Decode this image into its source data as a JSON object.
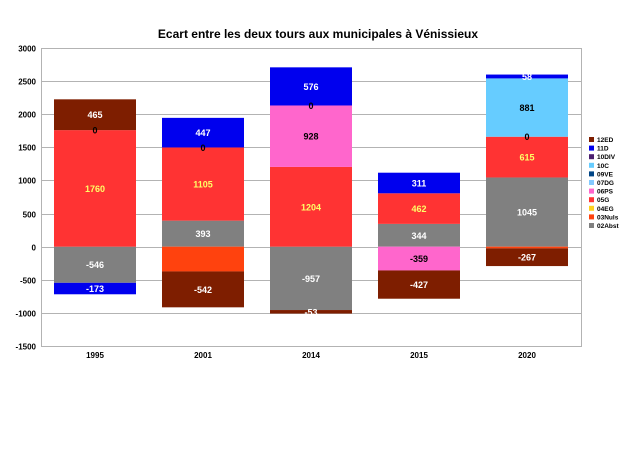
{
  "chart_data": {
    "type": "bar",
    "stacked": true,
    "title": "Ecart entre les deux tours aux municipales à Vénissieux",
    "xlabel": "",
    "ylabel": "",
    "ylim": [
      -1500,
      3000
    ],
    "y_ticks": [
      3000,
      2500,
      2000,
      1500,
      1000,
      500,
      0,
      -500,
      -1000,
      -1500
    ],
    "grid": true,
    "legend_position": "right",
    "categories": [
      "1995",
      "2001",
      "2014",
      "2015",
      "2020"
    ],
    "legend": [
      "12ED",
      "11D",
      "10DIV",
      "10C",
      "09VE",
      "07DG",
      "06PS",
      "05G",
      "04EG",
      "03Nuls",
      "02Abst"
    ],
    "series": [
      {
        "name": "02Abst",
        "color": "#808080",
        "label_color": "#ffffff",
        "values": [
          -546,
          393,
          -957,
          344,
          1045
        ]
      },
      {
        "name": "03Nuls",
        "color": "#ff420e",
        "label_color": "#000000",
        "values": [
          0,
          -374,
          0,
          0,
          -26
        ]
      },
      {
        "name": "04EG",
        "color": "#ffd320",
        "label_color": "#000000",
        "values": [
          0,
          0,
          0,
          0,
          0
        ]
      },
      {
        "name": "05G",
        "color": "#ff3333",
        "label_color": "#ffff66",
        "values": [
          1760,
          1105,
          1204,
          462,
          615
        ]
      },
      {
        "name": "06PS",
        "color": "#ff66cc",
        "label_color": "#000000",
        "values": [
          0,
          0,
          928,
          -359,
          0
        ]
      },
      {
        "name": "07DG",
        "color": "#83caff",
        "label_color": "#000000",
        "values": [
          0,
          0,
          0,
          0,
          0
        ]
      },
      {
        "name": "09VE",
        "color": "#004586",
        "label_color": "#000000",
        "values": [
          0,
          0,
          0,
          0,
          0
        ]
      },
      {
        "name": "10C",
        "color": "#66ccff",
        "label_color": "#000000",
        "values": [
          0,
          0,
          0,
          0,
          881
        ]
      },
      {
        "name": "10DIV",
        "color": "#4b1f6f",
        "label_color": "#000000",
        "values": [
          0,
          0,
          0,
          0,
          0
        ]
      },
      {
        "name": "11D",
        "color": "#0000ee",
        "label_color": "#ffffff",
        "values": [
          -173,
          447,
          576,
          311,
          58
        ]
      },
      {
        "name": "12ED",
        "color": "#7e1e00",
        "label_color": "#ffffff",
        "values": [
          465,
          -542,
          -53,
          -427,
          -267
        ]
      }
    ],
    "data_labels": [
      {
        "category": 0,
        "series": "02Abst",
        "text": "-546"
      },
      {
        "category": 0,
        "series": "05G",
        "text": "1760"
      },
      {
        "category": 0,
        "series": "11D",
        "text": "-173"
      },
      {
        "category": 0,
        "series": "12ED",
        "text": "465"
      },
      {
        "category": 0,
        "series": "12ED",
        "text": "0",
        "at": 1760
      },
      {
        "category": 1,
        "series": "02Abst",
        "text": "393"
      },
      {
        "category": 1,
        "series": "05G",
        "text": "1105"
      },
      {
        "category": 1,
        "series": "11D",
        "text": "447"
      },
      {
        "category": 1,
        "series": "12ED",
        "text": "-542"
      },
      {
        "category": 1,
        "series": "11D",
        "text": "0",
        "at": 1498
      },
      {
        "category": 2,
        "series": "02Abst",
        "text": "-957"
      },
      {
        "category": 2,
        "series": "05G",
        "text": "1204"
      },
      {
        "category": 2,
        "series": "06PS",
        "text": "928"
      },
      {
        "category": 2,
        "series": "11D",
        "text": "576"
      },
      {
        "category": 2,
        "series": "12ED",
        "text": "-53"
      },
      {
        "category": 2,
        "series": "11D",
        "text": "0",
        "at": 2132
      },
      {
        "category": 3,
        "series": "02Abst",
        "text": "344"
      },
      {
        "category": 3,
        "series": "05G",
        "text": "462"
      },
      {
        "category": 3,
        "series": "06PS",
        "text": "-359"
      },
      {
        "category": 3,
        "series": "11D",
        "text": "311"
      },
      {
        "category": 3,
        "series": "12ED",
        "text": "-427"
      },
      {
        "category": 4,
        "series": "02Abst",
        "text": "1045"
      },
      {
        "category": 4,
        "series": "05G",
        "text": "615"
      },
      {
        "category": 4,
        "series": "10C",
        "text": "881"
      },
      {
        "category": 4,
        "series": "11D",
        "text": "58"
      },
      {
        "category": 4,
        "series": "12ED",
        "text": "-267"
      },
      {
        "category": 4,
        "series": "10C",
        "text": "0",
        "at": 1660
      }
    ]
  }
}
